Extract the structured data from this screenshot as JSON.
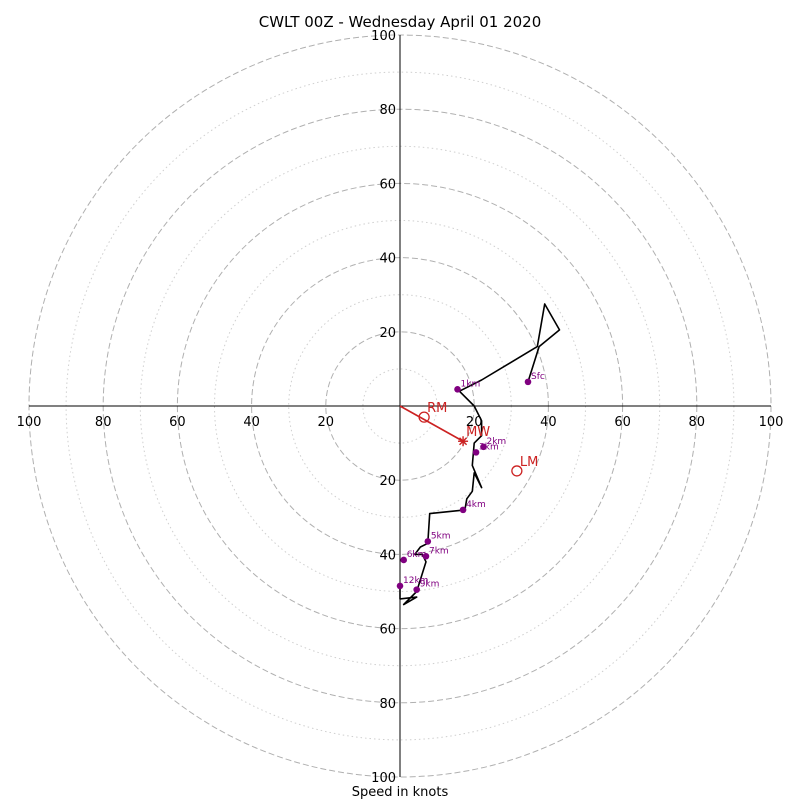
{
  "chart_data": {
    "type": "scatter",
    "title": "CWLT 00Z - Wednesday April 01 2020",
    "xlabel": "Speed in knots",
    "ylabel": "",
    "xlim": [
      -100,
      100
    ],
    "ylim": [
      -100,
      100
    ],
    "rings": [
      10,
      20,
      30,
      40,
      50,
      60,
      70,
      80,
      90,
      100
    ],
    "ring_labels": [
      20,
      40,
      60,
      80,
      100
    ],
    "x_tick_labels": [
      "100",
      "80",
      "60",
      "40",
      "20",
      "20",
      "40",
      "60",
      "80",
      "100"
    ],
    "y_tick_labels": [
      "100",
      "80",
      "60",
      "40",
      "20",
      "20",
      "40",
      "60",
      "80",
      "100"
    ],
    "grid": true,
    "colors": {
      "hodograph": "#000000",
      "height_marker": "#800080",
      "motion": "#cc2222",
      "ring_major": "#b0b0b0",
      "ring_minor": "#cfcfcf"
    },
    "hodograph": [
      [
        34.5,
        6.5
      ],
      [
        37.5,
        16.0
      ],
      [
        43.0,
        20.5
      ],
      [
        39.0,
        27.5
      ],
      [
        37.0,
        16.0
      ],
      [
        22.0,
        7.0
      ],
      [
        16.0,
        4.0
      ],
      [
        20.0,
        0.0
      ],
      [
        22.0,
        -4.0
      ],
      [
        22.0,
        -8.0
      ],
      [
        20.0,
        -10.0
      ],
      [
        19.5,
        -16.0
      ],
      [
        22.0,
        -22.0
      ],
      [
        20.0,
        -18.0
      ],
      [
        19.5,
        -23.0
      ],
      [
        18.0,
        -25.0
      ],
      [
        17.5,
        -28.0
      ],
      [
        8.0,
        -29.0
      ],
      [
        7.5,
        -37.0
      ],
      [
        5.5,
        -38.0
      ],
      [
        4.0,
        -40.0
      ],
      [
        6.0,
        -40.0
      ],
      [
        7.0,
        -42.0
      ],
      [
        4.5,
        -50.0
      ],
      [
        1.0,
        -53.5
      ],
      [
        4.5,
        -51.5
      ],
      [
        0.0,
        -52.0
      ],
      [
        0.0,
        -49.0
      ]
    ],
    "height_markers": [
      {
        "label": "Sfc",
        "x": 34.5,
        "y": 6.5
      },
      {
        "label": "1km",
        "x": 15.5,
        "y": 4.5
      },
      {
        "label": "2km",
        "x": 22.5,
        "y": -11.0
      },
      {
        "label": "3km",
        "x": 20.5,
        "y": -12.5
      },
      {
        "label": "4km",
        "x": 17.0,
        "y": -28.0
      },
      {
        "label": "5km",
        "x": 7.5,
        "y": -36.5
      },
      {
        "label": "6km",
        "x": 1.0,
        "y": -41.5
      },
      {
        "label": "7km",
        "x": 7.0,
        "y": -40.5
      },
      {
        "label": "9km",
        "x": 4.5,
        "y": -49.5
      },
      {
        "label": "12km",
        "x": 0.0,
        "y": -48.5
      }
    ],
    "storm_motion": [
      {
        "label": "RM",
        "x": 6.5,
        "y": -3.0,
        "marker": "circle"
      },
      {
        "label": "MW",
        "x": 17.0,
        "y": -9.5,
        "marker": "star"
      },
      {
        "label": "LM",
        "x": 31.5,
        "y": -17.5,
        "marker": "circle"
      }
    ],
    "shear_vector": {
      "from": [
        0,
        0
      ],
      "to": [
        17.0,
        -9.5
      ]
    }
  }
}
